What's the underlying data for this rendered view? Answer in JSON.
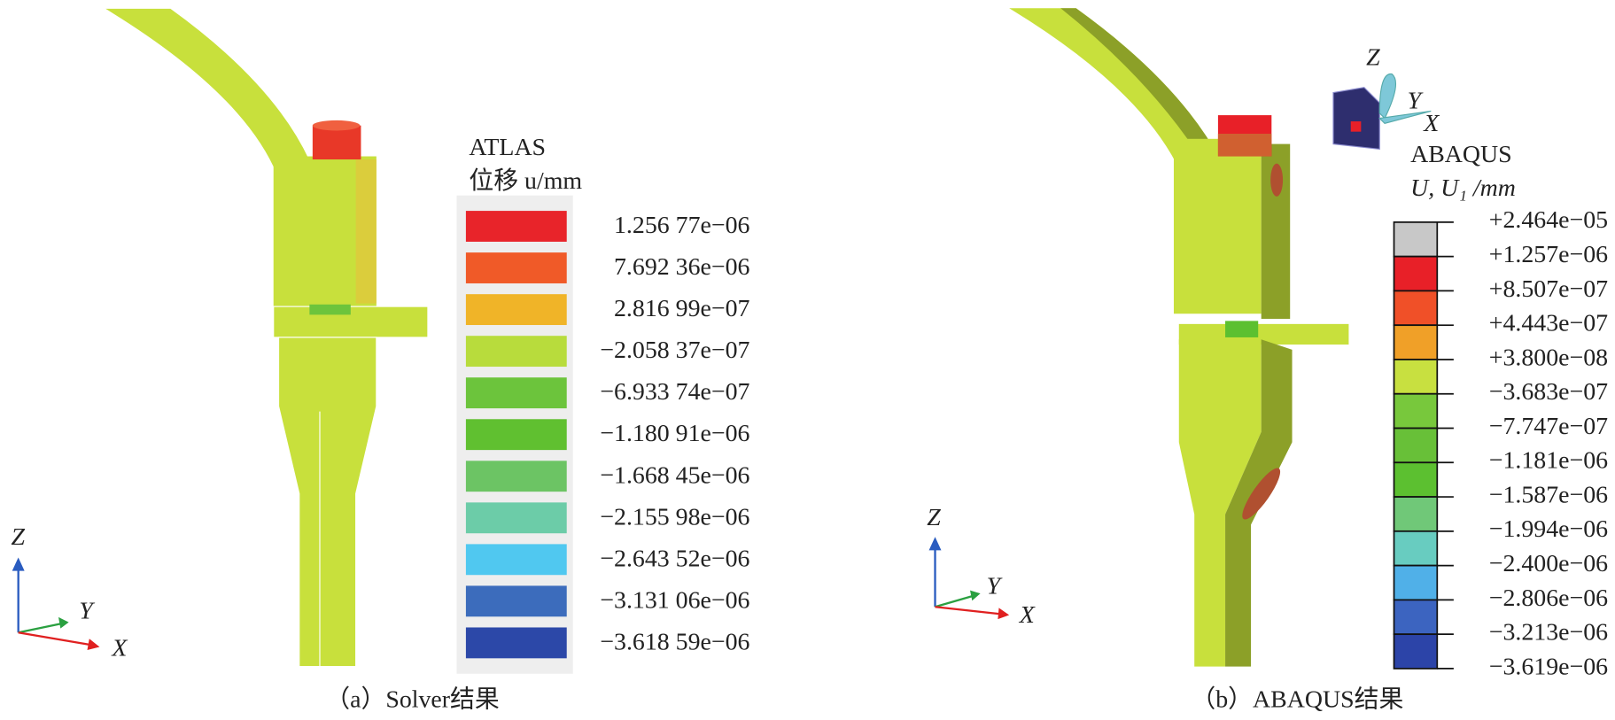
{
  "panels": [
    {
      "title": "ATLAS",
      "subtitle": "位移 u/mm",
      "legend": {
        "labels": [
          "1.256 77e−06",
          "7.692 36e−06",
          "2.816 99e−07",
          "−2.058 37e−07",
          "−6.933 74e−07",
          "−1.180 91e−06",
          "−1.668 45e−06",
          "−2.155 98e−06",
          "−2.643 52e−06",
          "−3.131 06e−06",
          "−3.618 59e−06"
        ],
        "colors": [
          "#e8242a",
          "#f05a28",
          "#f0b428",
          "#b8dc3c",
          "#6cc43c",
          "#60c030",
          "#6cc464",
          "#6ccca8",
          "#50c8f0",
          "#3c6cbc",
          "#2c48a8"
        ]
      },
      "axes": {
        "z": "Z",
        "y": "Y",
        "x": "X"
      },
      "caption": "（a）Solver结果"
    },
    {
      "title": "ABAQUS",
      "subtitle": "U, U₁ /mm",
      "legend": {
        "labels": [
          "+2.464e−05",
          "+1.257e−06",
          "+8.507e−07",
          "+4.443e−07",
          "+3.800e−08",
          "−3.683e−07",
          "−7.747e−07",
          "−1.181e−06",
          "−1.587e−06",
          "−1.994e−06",
          "−2.400e−06",
          "−2.806e−06",
          "−3.213e−06",
          "−3.619e−06"
        ],
        "colors": [
          "#c8c8c8",
          "#e82028",
          "#f05028",
          "#f0a028",
          "#c8e040",
          "#78c83c",
          "#68c038",
          "#5cc030",
          "#70c878",
          "#68ccc0",
          "#50b0e8",
          "#3c64c0",
          "#2c44a8"
        ]
      },
      "axes": {
        "z": "Z",
        "y": "Y",
        "x": "X"
      },
      "view_cube": {
        "z": "Z",
        "y": "Y",
        "x": "X"
      },
      "caption": "（b）ABAQUS结果"
    }
  ]
}
